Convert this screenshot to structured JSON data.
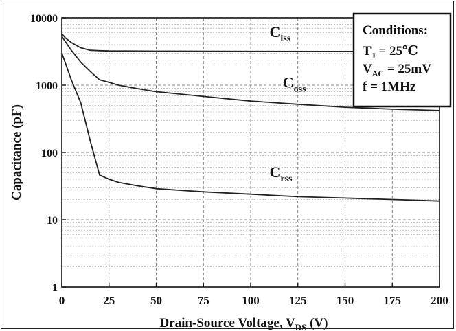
{
  "chart_data": {
    "type": "line",
    "title": "",
    "xlabel": "Drain-Source Voltage, V",
    "xlabel_sub": "DS",
    "xlabel_unit": " (V)",
    "ylabel": "Capacitance (pF)",
    "xlim": [
      0,
      200
    ],
    "ylim": [
      1,
      10000
    ],
    "yscale": "log",
    "grid": true,
    "x_ticks": [
      0,
      25,
      50,
      75,
      100,
      125,
      150,
      175,
      200
    ],
    "y_ticks": [
      1,
      10,
      100,
      1000,
      10000
    ],
    "x_tick_labels": [
      "0",
      "25",
      "50",
      "75",
      "100",
      "125",
      "150",
      "175",
      "200"
    ],
    "y_tick_labels": [
      "1",
      "10",
      "100",
      "1000",
      "10000"
    ],
    "series": [
      {
        "name": "C",
        "sub": "iss",
        "x": [
          0,
          2,
          5,
          10,
          15,
          20,
          25,
          50,
          100,
          150,
          200
        ],
        "y": [
          5800,
          5000,
          4300,
          3600,
          3300,
          3250,
          3220,
          3200,
          3180,
          3170,
          3160
        ]
      },
      {
        "name": "C",
        "sub": "oss",
        "x": [
          0,
          5,
          10,
          15,
          20,
          25,
          30,
          40,
          50,
          75,
          100,
          125,
          150,
          175,
          200
        ],
        "y": [
          5300,
          3300,
          2200,
          1600,
          1200,
          1100,
          1000,
          890,
          800,
          680,
          580,
          520,
          470,
          440,
          420
        ]
      },
      {
        "name": "C",
        "sub": "rss",
        "x": [
          0,
          5,
          10,
          15,
          20,
          25,
          30,
          40,
          50,
          75,
          100,
          125,
          150,
          175,
          200
        ],
        "y": [
          3000,
          1200,
          550,
          150,
          46,
          40,
          36,
          32,
          29,
          26,
          24,
          22,
          21,
          20,
          19
        ]
      }
    ],
    "legend": {
      "placement": "top-right",
      "title": "Conditions:",
      "lines": [
        {
          "main": "T",
          "sub": "J",
          "rest": " = 25℃"
        },
        {
          "main": "V",
          "sub": "AC",
          "rest": " = 25mV"
        },
        {
          "main": "f",
          "sub": "",
          "rest": "  =  1MHz"
        }
      ]
    },
    "series_labels": [
      {
        "series": 0,
        "at_x": 110,
        "at_y": 5200
      },
      {
        "series": 1,
        "at_x": 117,
        "at_y": 920
      },
      {
        "series": 2,
        "at_x": 110,
        "at_y": 43
      }
    ]
  }
}
